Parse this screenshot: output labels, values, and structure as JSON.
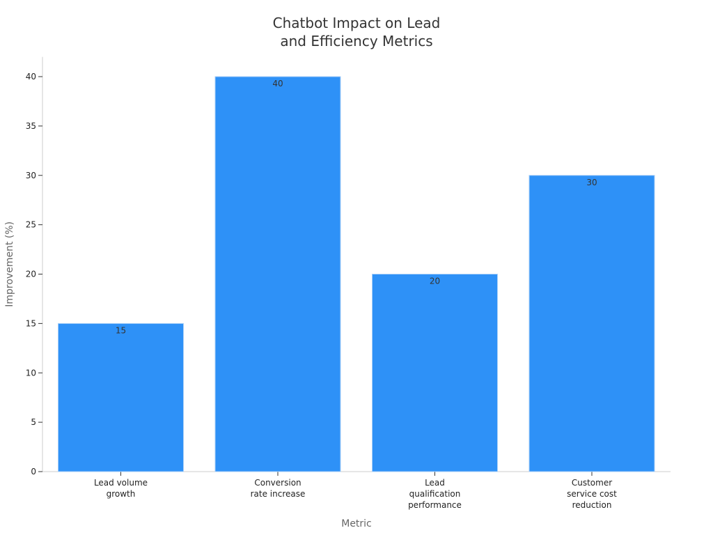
{
  "chart_data": {
    "type": "bar",
    "title": [
      "Chatbot Impact on Lead",
      "and Efficiency Metrics"
    ],
    "xlabel": "Metric",
    "ylabel": "Improvement (%)",
    "categories": [
      [
        "Lead volume",
        "growth"
      ],
      [
        "Conversion",
        "rate increase"
      ],
      [
        "Lead",
        "qualification",
        "performance"
      ],
      [
        "Customer",
        "service cost",
        "reduction"
      ]
    ],
    "values": [
      15,
      40,
      20,
      30
    ],
    "ylim": [
      0,
      42
    ],
    "yticks": [
      0,
      5,
      10,
      15,
      20,
      25,
      30,
      35,
      40
    ],
    "bar_color": "#2e91f7",
    "bar_edge_color": "#a9cff7",
    "grid": false,
    "legend": "none"
  }
}
